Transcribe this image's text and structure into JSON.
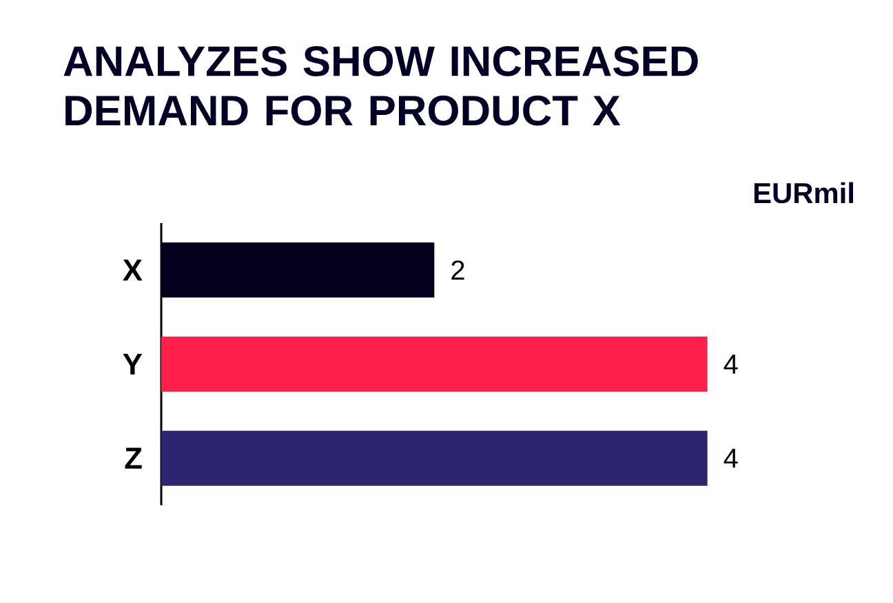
{
  "chart_data": {
    "type": "bar",
    "orientation": "horizontal",
    "title": "ANALYZES SHOW INCREASED DEMAND FOR PRODUCT X",
    "annotations": [
      "EURmil"
    ],
    "categories": [
      "X",
      "Y",
      "Z"
    ],
    "values": [
      2,
      4,
      4
    ],
    "colors": [
      "#03001e",
      "#ff1f4b",
      "#2e2570"
    ],
    "data_labels": true,
    "tick_labels": "y"
  }
}
